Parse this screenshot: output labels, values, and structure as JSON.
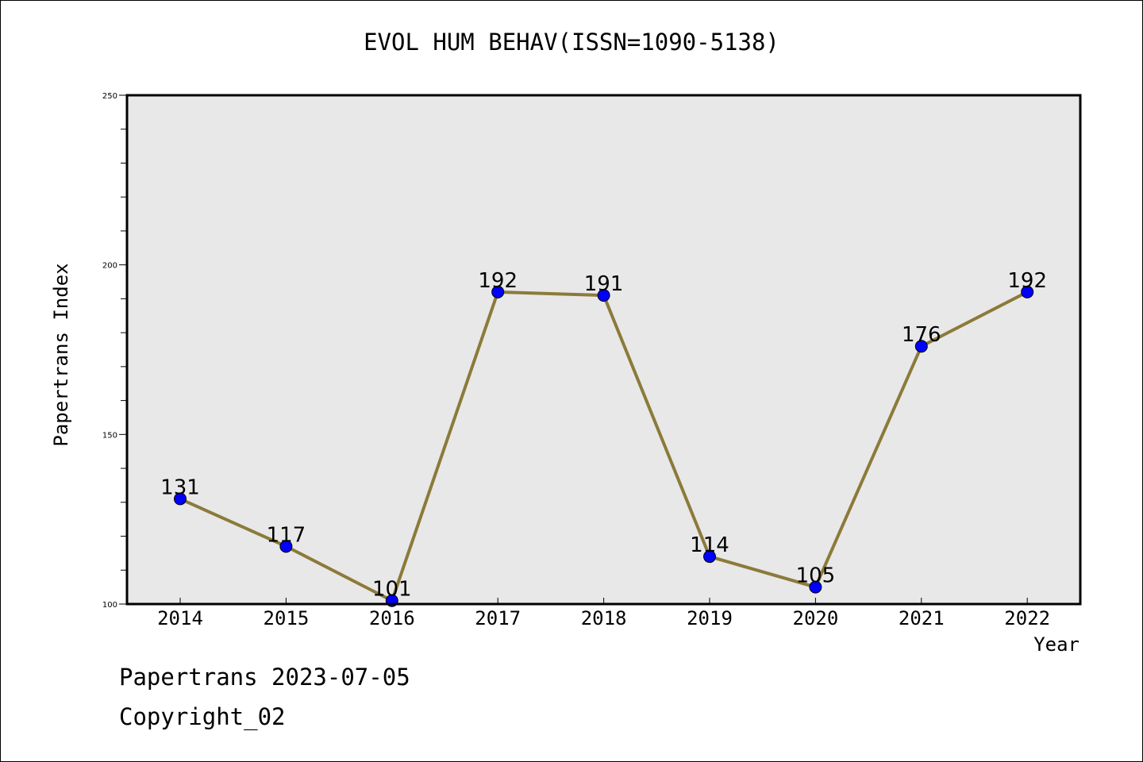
{
  "chart_data": {
    "type": "line",
    "title": "EVOL HUM BEHAV(ISSN=1090-5138)",
    "xlabel": "Year",
    "ylabel": "Papertrans Index",
    "x": [
      "2014",
      "2015",
      "2016",
      "2017",
      "2018",
      "2019",
      "2020",
      "2021",
      "2022"
    ],
    "series": [
      {
        "values": [
          131,
          117,
          101,
          192,
          191,
          114,
          105,
          176,
          192
        ]
      }
    ],
    "data_labels": [
      "131",
      "117",
      "101",
      "192",
      "191",
      "114",
      "105",
      "176",
      "192"
    ],
    "ylim": [
      100,
      250
    ],
    "yticks": [
      "100",
      "150",
      "200",
      "250"
    ],
    "grid": false,
    "colors": {
      "line": "#8c7a3a",
      "marker": "#0000ff",
      "plot_background": "#e8e8e8"
    }
  },
  "footer": {
    "line1": "Papertrans 2023-07-05",
    "line2": "Copyright_02"
  }
}
